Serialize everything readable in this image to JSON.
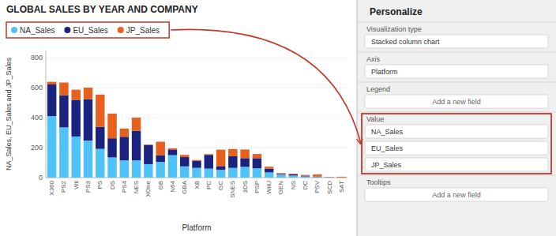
{
  "chart_data": {
    "type": "bar",
    "stacked": true,
    "title": "GLOBAL SALES BY YEAR AND COMPANY",
    "xlabel": "Platform",
    "ylabel": "NA_Sales, EU_Sales and JP_Sales",
    "categories": [
      "X360",
      "PS2",
      "Wii",
      "PS3",
      "PS",
      "DS",
      "PS4",
      "NES",
      "XOne",
      "GB",
      "N64",
      "GBA",
      "XB",
      "PC",
      "GC",
      "SNES",
      "3DS",
      "PSP",
      "WiiU",
      "GEN",
      "NS",
      "DC",
      "PSV",
      "SCD",
      "SAT"
    ],
    "series": [
      {
        "name": "NA_Sales",
        "color": "#4FC3F7",
        "values": [
          411,
          336,
          275,
          247,
          192,
          135,
          115,
          115,
          90,
          105,
          150,
          75,
          65,
          60,
          52,
          65,
          72,
          62,
          35,
          20,
          14,
          8,
          4,
          2,
          1
        ]
      },
      {
        "name": "EU_Sales",
        "color": "#1A237E",
        "values": [
          212,
          215,
          245,
          278,
          148,
          128,
          158,
          198,
          128,
          45,
          38,
          62,
          48,
          92,
          25,
          78,
          58,
          68,
          25,
          5,
          8,
          5,
          3,
          1,
          0
        ]
      },
      {
        "name": "JP_Sales",
        "color": "#E8601E",
        "values": [
          18,
          85,
          68,
          77,
          215,
          165,
          55,
          88,
          4,
          90,
          8,
          15,
          5,
          5,
          110,
          48,
          58,
          28,
          13,
          5,
          4,
          5,
          14,
          1,
          5
        ]
      }
    ],
    "ylim": [
      0,
      850
    ],
    "yticks": [
      0,
      200,
      400,
      600,
      800
    ],
    "grid": true,
    "legend": "top-left",
    "annotations": [
      "Personalize",
      "Visualization type",
      "Stacked column chart",
      "Axis",
      "Platform",
      "Legend",
      "Add a new field",
      "Value",
      "NA_Sales",
      "EU_Sales",
      "JP_Sales",
      "Tooltips",
      "Add a new field"
    ]
  }
}
